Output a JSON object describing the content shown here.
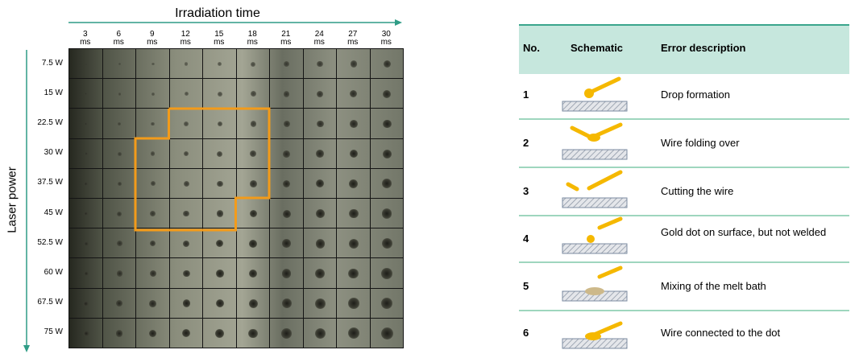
{
  "figure": {
    "x_axis_title": "Irradiation time",
    "y_axis_title": "Laser power",
    "columns": [
      "3 ms",
      "6 ms",
      "9 ms",
      "12 ms",
      "15 ms",
      "18 ms",
      "21 ms",
      "24 ms",
      "27 ms",
      "30 ms"
    ],
    "rows": [
      "7.5 W",
      "15 W",
      "22.5 W",
      "30 W",
      "37.5 W",
      "45 W",
      "52.5 W",
      "60 W",
      "67.5 W",
      "75 W"
    ]
  },
  "table": {
    "header": [
      "No.",
      "Schematic",
      "Error description"
    ],
    "rows": [
      [
        "1",
        "Drop formation"
      ],
      [
        "2",
        "Wire folding over"
      ],
      [
        "3",
        "Cutting the wire"
      ],
      [
        "4",
        "Gold dot on surface, but not welded"
      ],
      [
        "5",
        "Mixing of the melt bath"
      ],
      [
        "6",
        "Wire connected to the dot"
      ]
    ]
  }
}
